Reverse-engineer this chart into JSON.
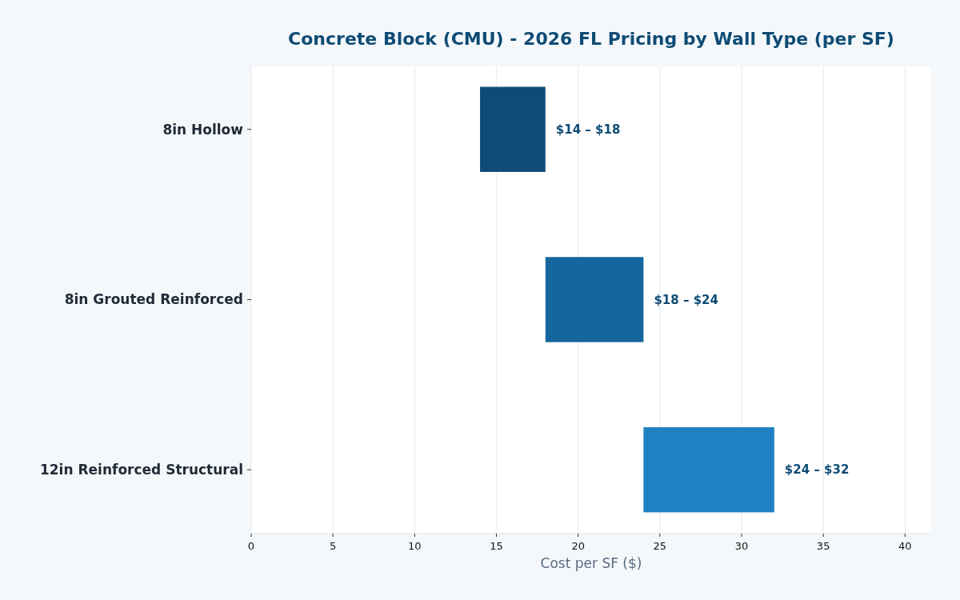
{
  "chart_data": {
    "type": "bar",
    "orientation": "horizontal",
    "title": "Concrete Block (CMU) - 2026 FL Pricing by Wall Type (per SF)",
    "xlabel": "Cost per SF ($)",
    "categories": [
      "8in Hollow",
      "8in Grouted Reinforced",
      "12in Reinforced Structural"
    ],
    "base": [
      14,
      18,
      24
    ],
    "values": [
      4,
      6,
      8
    ],
    "colors": [
      "#0f4c75",
      "#15659e",
      "#1f80c2"
    ],
    "annotations": [
      {
        "text": "$14 – $18",
        "x": 18,
        "y": "8in Hollow"
      },
      {
        "text": "$18 – $24",
        "x": 24,
        "y": "8in Grouted Reinforced"
      },
      {
        "text": "$24 – $32",
        "x": 32,
        "y": "12in Reinforced Structural"
      }
    ],
    "xlim": [
      0,
      41.6
    ],
    "xticks": [
      0,
      5,
      10,
      15,
      20,
      25,
      30,
      35,
      40
    ],
    "grid": "x"
  }
}
